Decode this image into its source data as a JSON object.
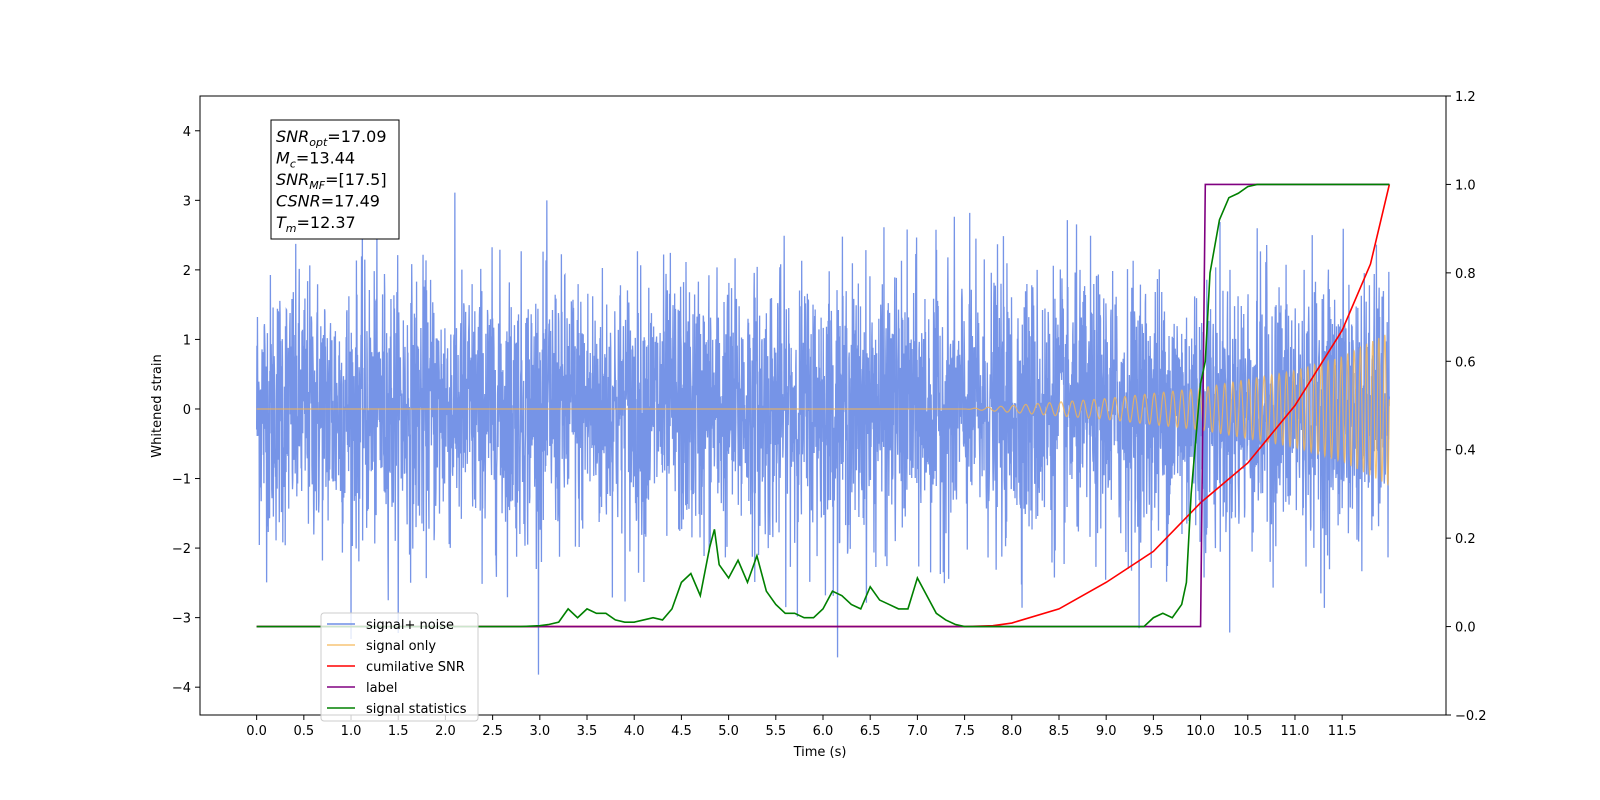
{
  "chart_data": {
    "type": "line",
    "xlabel": "Time (s)",
    "ylabel": "Whitened strain",
    "xlim": [
      -0.6,
      12.6
    ],
    "ylim": [
      -4.4,
      4.5
    ],
    "y2lim": [
      -0.2,
      1.2
    ],
    "grid": false,
    "legend_position": "lower-left",
    "x_ticks": [
      "0.0",
      "0.5",
      "1.0",
      "1.5",
      "2.0",
      "2.5",
      "3.0",
      "3.5",
      "4.0",
      "4.5",
      "5.0",
      "5.5",
      "6.0",
      "6.5",
      "7.0",
      "7.5",
      "8.0",
      "8.5",
      "9.0",
      "9.5",
      "10.0",
      "10.5",
      "11.0",
      "11.5"
    ],
    "y_ticks": [
      4,
      3,
      2,
      1,
      0,
      -1,
      -2,
      -3,
      -4
    ],
    "y_tick_labels": [
      "4",
      "3",
      "2",
      "1",
      "0",
      "−1",
      "−2",
      "−3",
      "−4"
    ],
    "y2_ticks": [
      1.2,
      1.0,
      0.8,
      0.6,
      0.4,
      0.2,
      0.0,
      -0.2
    ],
    "y2_tick_labels": [
      "1.2",
      "1.0",
      "0.8",
      "0.6",
      "0.4",
      "0.2",
      "0.0",
      "−0.2"
    ],
    "annotation": {
      "lines": [
        {
          "base": "SNR",
          "sub": "opt",
          "value": "=17.09"
        },
        {
          "base": "M",
          "sub": "c",
          "value": "=13.44"
        },
        {
          "base": "SNR",
          "sub": "MF",
          "value": "=[17.5]"
        },
        {
          "base": "CSNR",
          "sub": "",
          "value": "=17.49"
        },
        {
          "base": "T",
          "sub": "m",
          "value": "=12.37"
        }
      ]
    },
    "series": [
      {
        "name": "signal+ noise",
        "color": "#6f8ee6",
        "axis": "left",
        "kind": "noise",
        "x_range": [
          0.0,
          12.0
        ],
        "std": 0.95,
        "amplitude_range": [
          -3.9,
          4.1
        ]
      },
      {
        "name": "signal only",
        "color": "#f5b553",
        "axis": "left",
        "kind": "chirp",
        "x_range": [
          0.0,
          12.0
        ],
        "envelope": {
          "x": [
            0.0,
            7.5,
            8.0,
            9.0,
            10.0,
            11.0,
            11.5,
            12.0
          ],
          "y": [
            0.0,
            0.0,
            0.05,
            0.15,
            0.3,
            0.55,
            0.75,
            1.1
          ]
        }
      },
      {
        "name": "cumilative SNR",
        "color": "#ff0000",
        "axis": "right",
        "x": [
          0.0,
          7.5,
          7.8,
          8.0,
          8.5,
          9.0,
          9.5,
          10.0,
          10.5,
          11.0,
          11.5,
          11.8,
          12.0
        ],
        "y": [
          0.0,
          0.0,
          0.002,
          0.008,
          0.04,
          0.1,
          0.17,
          0.28,
          0.37,
          0.5,
          0.67,
          0.82,
          1.0
        ]
      },
      {
        "name": "label",
        "color": "#800080",
        "axis": "right",
        "x": [
          0.0,
          10.0,
          10.05,
          12.0
        ],
        "y": [
          0.0,
          0.0,
          1.0,
          1.0
        ]
      },
      {
        "name": "signal statistics",
        "color": "#008000",
        "axis": "right",
        "x": [
          0.0,
          2.8,
          3.0,
          3.1,
          3.2,
          3.3,
          3.4,
          3.5,
          3.6,
          3.7,
          3.8,
          3.9,
          4.0,
          4.1,
          4.2,
          4.3,
          4.4,
          4.5,
          4.6,
          4.7,
          4.8,
          4.85,
          4.9,
          5.0,
          5.1,
          5.2,
          5.3,
          5.4,
          5.5,
          5.6,
          5.7,
          5.8,
          5.9,
          6.0,
          6.1,
          6.2,
          6.3,
          6.4,
          6.5,
          6.6,
          6.7,
          6.8,
          6.9,
          7.0,
          7.1,
          7.2,
          7.3,
          7.4,
          7.5,
          7.7,
          8.0,
          8.5,
          9.0,
          9.4,
          9.5,
          9.6,
          9.7,
          9.8,
          9.85,
          9.9,
          10.0,
          10.05,
          10.1,
          10.2,
          10.3,
          10.4,
          10.5,
          10.6,
          10.8,
          11.0,
          11.5,
          12.0
        ],
        "y": [
          0.0,
          0.0,
          0.002,
          0.005,
          0.01,
          0.04,
          0.02,
          0.04,
          0.03,
          0.03,
          0.015,
          0.01,
          0.01,
          0.015,
          0.02,
          0.015,
          0.04,
          0.1,
          0.12,
          0.07,
          0.18,
          0.22,
          0.14,
          0.11,
          0.15,
          0.1,
          0.16,
          0.08,
          0.05,
          0.03,
          0.03,
          0.02,
          0.02,
          0.04,
          0.08,
          0.07,
          0.05,
          0.04,
          0.09,
          0.06,
          0.05,
          0.04,
          0.04,
          0.11,
          0.07,
          0.03,
          0.015,
          0.005,
          0.0,
          0.0,
          0.0,
          0.0,
          0.0,
          0.0,
          0.02,
          0.03,
          0.02,
          0.05,
          0.1,
          0.3,
          0.55,
          0.6,
          0.8,
          0.92,
          0.97,
          0.98,
          0.995,
          1.0,
          1.0,
          1.0,
          1.0,
          1.0
        ]
      }
    ]
  }
}
